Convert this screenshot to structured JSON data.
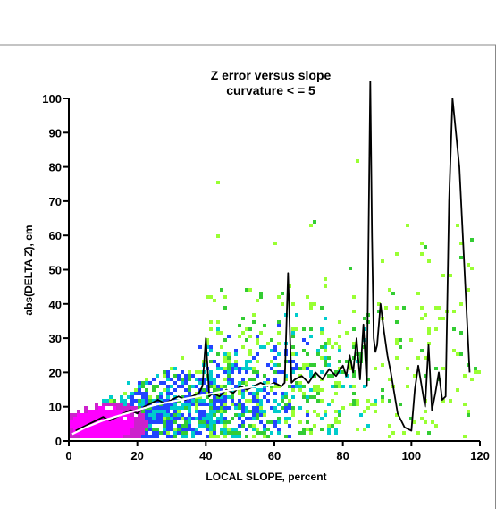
{
  "chart_data": {
    "type": "scatter",
    "title": "Z error versus slope",
    "subtitle": "curvature < = 5",
    "xlabel": "LOCAL SLOPE, percent",
    "ylabel": "abs(DELTA Z), cm",
    "xlim": [
      0,
      120
    ],
    "ylim": [
      0,
      100
    ],
    "x_ticks": [
      "0",
      "20",
      "40",
      "60",
      "80",
      "100",
      "120"
    ],
    "y_ticks": [
      "0",
      "10",
      "20",
      "30",
      "40",
      "50",
      "60",
      "70",
      "80",
      "90",
      "100"
    ],
    "grid": false,
    "density_colors": [
      "#ff00ff",
      "#cc22cc",
      "#2244ff",
      "#00cccc",
      "#33cc33",
      "#99ff33"
    ],
    "series": [
      {
        "type": "line",
        "color": "#000000",
        "x": [
          2,
          4,
          6,
          8,
          10,
          12,
          14,
          16,
          18,
          20,
          22,
          24,
          26,
          28,
          30,
          32,
          34,
          36,
          38,
          39,
          40,
          41,
          42,
          44,
          46,
          48,
          50,
          52,
          54,
          56,
          58,
          60,
          62,
          63,
          64,
          65,
          66,
          68,
          70,
          72,
          74,
          76,
          78,
          80,
          81,
          82,
          83,
          84,
          85,
          86,
          87,
          88,
          88.5,
          89,
          89.5,
          90,
          91,
          92,
          93,
          94,
          96,
          98,
          100,
          101,
          102,
          104,
          105,
          106,
          107,
          108,
          109,
          110,
          111,
          112,
          113,
          114,
          115,
          116,
          117
        ],
        "y": [
          3,
          4,
          5,
          6,
          7,
          6,
          7,
          8,
          9,
          8,
          10,
          11,
          12,
          11,
          12,
          13,
          12,
          13,
          14,
          16,
          30,
          13,
          14,
          13,
          15,
          14,
          16,
          15,
          16,
          17,
          16,
          17,
          16,
          17,
          49,
          17,
          18,
          19,
          17,
          20,
          18,
          21,
          19,
          22,
          19,
          25,
          20,
          30,
          18,
          34,
          16,
          105,
          60,
          30,
          26,
          28,
          40,
          32,
          25,
          20,
          8,
          4,
          3,
          15,
          22,
          10,
          28,
          9,
          14,
          20,
          12,
          13,
          70,
          100,
          90,
          80,
          60,
          40,
          20
        ]
      },
      {
        "type": "line",
        "color": "#ffffff",
        "x": [
          1,
          5,
          10,
          15,
          20,
          25,
          30,
          35,
          40,
          45,
          50,
          55,
          60
        ],
        "y": [
          2,
          4,
          6,
          7.5,
          9,
          10.5,
          11.5,
          12.5,
          13.5,
          14.5,
          15.3,
          16,
          16.5
        ]
      }
    ]
  }
}
